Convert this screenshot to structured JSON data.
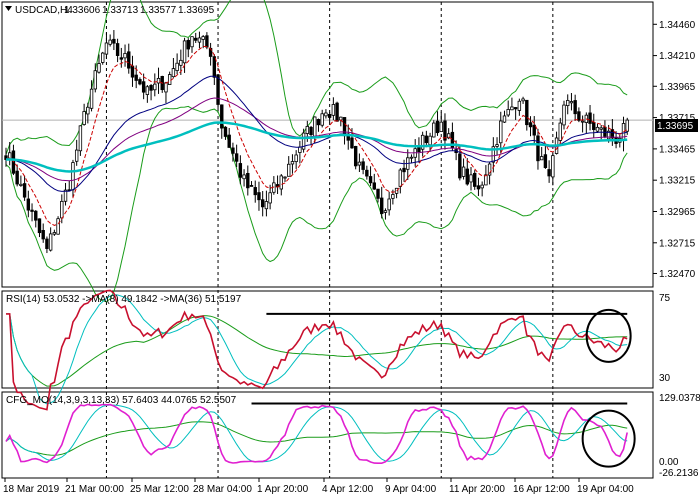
{
  "chart_data": [
    {
      "type": "candlestick",
      "title": "USDCAD,H4",
      "ohlc_readout": [
        "1.33606",
        "1.33713",
        "1.33577",
        "1.33695"
      ],
      "current_price": "1.33695",
      "yticks": [
        "1.34460",
        "1.34210",
        "1.33965",
        "1.33715",
        "1.33465",
        "1.33215",
        "1.32965",
        "1.32715",
        "1.32470"
      ],
      "ylim": [
        1.3237,
        1.3463
      ],
      "x_labels": [
        "18 Mar 2019",
        "21 Mar 00:00",
        "25 Mar 12:00",
        "28 Mar 04:00",
        "1 Apr 20:00",
        "4 Apr 12:00",
        "9 Apr 04:00",
        "11 Apr 20:00",
        "16 Apr 12:00",
        "19 Apr 04:00"
      ],
      "anchors": [
        [
          0,
          1.3345
        ],
        [
          6,
          1.33
        ],
        [
          11,
          1.3265
        ],
        [
          17,
          1.332
        ],
        [
          22,
          1.3385
        ],
        [
          27,
          1.343
        ],
        [
          32,
          1.3418
        ],
        [
          38,
          1.339
        ],
        [
          44,
          1.3405
        ],
        [
          50,
          1.3438
        ],
        [
          55,
          1.3425
        ],
        [
          58,
          1.3365
        ],
        [
          64,
          1.332
        ],
        [
          69,
          1.33
        ],
        [
          74,
          1.3322
        ],
        [
          80,
          1.3355
        ],
        [
          86,
          1.338
        ],
        [
          90,
          1.337
        ],
        [
          95,
          1.333
        ],
        [
          101,
          1.3298
        ],
        [
          106,
          1.3328
        ],
        [
          112,
          1.3352
        ],
        [
          117,
          1.3368
        ],
        [
          122,
          1.333
        ],
        [
          127,
          1.3312
        ],
        [
          133,
          1.3365
        ],
        [
          138,
          1.339
        ],
        [
          142,
          1.3352
        ],
        [
          146,
          1.3318
        ],
        [
          150,
          1.3385
        ],
        [
          155,
          1.337
        ],
        [
          160,
          1.336
        ],
        [
          164,
          1.3355
        ],
        [
          166,
          1.336
        ],
        [
          167,
          1.3369
        ]
      ],
      "series": [
        {
          "name": "MA fast",
          "color": "#cc0000"
        },
        {
          "name": "MA medium",
          "color": "#000080"
        },
        {
          "name": "MA slow",
          "color": "#800080"
        },
        {
          "name": "MA long",
          "color": "#00bfbf"
        },
        {
          "name": "Bollinger bands",
          "color": "#1a9c1a"
        }
      ],
      "colors": {
        "candle": "#000000",
        "price_marker": "#000000"
      }
    },
    {
      "type": "line",
      "title": "RSI(14) 53.0532  ->MA(8) 49.1842  ->MA(36) 51.5197",
      "yticks": [
        "75",
        "30"
      ],
      "ylim": [
        20,
        85
      ],
      "series": [
        {
          "name": "RSI(14)",
          "color": "#c8102e",
          "last": 53.0532
        },
        {
          "name": "MA(8)",
          "color": "#00bfbf",
          "last": 49.1842
        },
        {
          "name": "MA(36)",
          "color": "#1a9c1a",
          "last": 51.5197
        }
      ],
      "annotations": {
        "resistance_line": {
          "y": 70,
          "x_start": 70,
          "x_end": 167
        },
        "ellipse": "around last bars"
      }
    },
    {
      "type": "line",
      "title": "CFG_MO(14,3,9,3,13,33) 57.6403  44.0765  52.5507",
      "yticks": [
        "129.0378",
        "0.00",
        "-26.2136"
      ],
      "ylim": [
        -35,
        140
      ],
      "series": [
        {
          "name": "CFG_MO",
          "color": "#e020d0",
          "last": 57.6403
        },
        {
          "name": "signal 1",
          "color": "#00bfbf",
          "last": 44.0765
        },
        {
          "name": "signal 2",
          "color": "#1a9c1a",
          "last": 52.5507
        }
      ],
      "annotations": {
        "resistance_line": {
          "y": 118,
          "x_start": 66,
          "x_end": 167
        },
        "ellipse": "around last bars"
      }
    }
  ]
}
